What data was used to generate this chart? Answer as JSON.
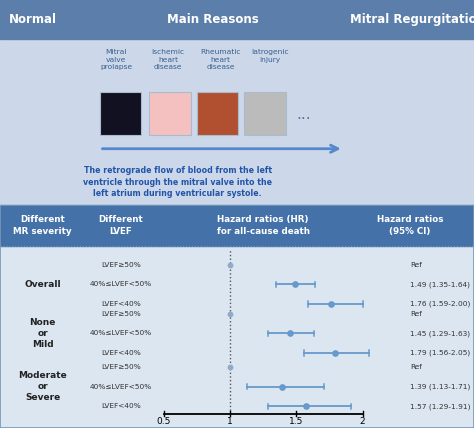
{
  "top_panel": {
    "bg_color": "#ccd8ea",
    "header_color": "#5b7faa",
    "title_left": "Normal",
    "title_center": "Main Reasons",
    "title_right": "Mitral Regurgitation",
    "reasons": [
      "Mitral\nvalve\nprolapse",
      "Ischemic\nheart\ndisease",
      "Rheumatic\nheart\ndisease",
      "Iatrogenic\ninjury"
    ],
    "description": "The retrograde flow of blood from the left\nventricle through the mitral valve into the\nleft atrium during ventricular systole."
  },
  "bottom_panel": {
    "bg_color": "#dce6f0",
    "header_color": "#4472a8",
    "col_headers": [
      "Different\nMR severity",
      "Different\nLVEF",
      "Hazard ratios (HR)\nfor all-cause death",
      "Hazard ratios\n(95% CI)"
    ],
    "groups": [
      {
        "label": "Overall",
        "rows": [
          {
            "lvef": "LVEF≥50%",
            "hr": null,
            "ci_low": null,
            "ci_high": null,
            "label": "Ref"
          },
          {
            "lvef": "40%≤LVEF<50%",
            "hr": 1.49,
            "ci_low": 1.35,
            "ci_high": 1.64,
            "label": "1.49 (1.35-1.64)"
          },
          {
            "lvef": "LVEF<40%",
            "hr": 1.76,
            "ci_low": 1.59,
            "ci_high": 2.0,
            "label": "1.76 (1.59-2.00)"
          }
        ]
      },
      {
        "label": "None\nor\nMild",
        "rows": [
          {
            "lvef": "LVEF≥50%",
            "hr": null,
            "ci_low": null,
            "ci_high": null,
            "label": "Ref"
          },
          {
            "lvef": "40%≤LVEF<50%",
            "hr": 1.45,
            "ci_low": 1.29,
            "ci_high": 1.63,
            "label": "1.45 (1.29-1.63)"
          },
          {
            "lvef": "LVEF<40%",
            "hr": 1.79,
            "ci_low": 1.56,
            "ci_high": 2.05,
            "label": "1.79 (1.56-2.05)"
          }
        ]
      },
      {
        "label": "Moderate\nor\nSevere",
        "rows": [
          {
            "lvef": "LVEF≥50%",
            "hr": null,
            "ci_low": null,
            "ci_high": null,
            "label": "Ref"
          },
          {
            "lvef": "40%≤LVEF<50%",
            "hr": 1.39,
            "ci_low": 1.13,
            "ci_high": 1.71,
            "label": "1.39 (1.13-1.71)"
          },
          {
            "lvef": "LVEF<40%",
            "hr": 1.57,
            "ci_low": 1.29,
            "ci_high": 1.91,
            "label": "1.57 (1.29-1.91)"
          }
        ]
      }
    ],
    "xmin": 0.5,
    "xmax": 2.0,
    "xref": 1.0,
    "xticks": [
      0.5,
      1.0,
      1.5,
      2.0
    ],
    "xtick_labels": [
      "0.5",
      "1",
      "1.5",
      "2"
    ],
    "point_color": "#6699cc",
    "line_color": "#6699cc",
    "ref_dot_color": "#8faacc"
  }
}
